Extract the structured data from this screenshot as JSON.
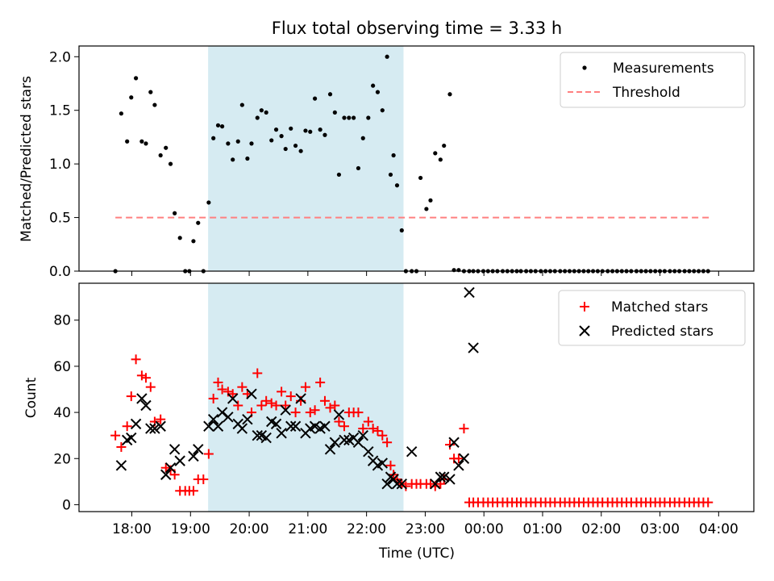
{
  "chart_data": [
    {
      "type": "scatter",
      "title": "Flux total observing time = 3.33 h",
      "xlabel": "",
      "ylabel": "Matched/Predicted stars",
      "xlim": [
        17.1,
        28.6
      ],
      "ylim": [
        0,
        2.1
      ],
      "yticks": [
        0.0,
        0.5,
        1.0,
        1.5,
        2.0
      ],
      "ytick_labels": [
        "0.0",
        "0.5",
        "1.0",
        "1.5",
        "2.0"
      ],
      "shaded_region": {
        "x0": 19.3,
        "x1": 22.63,
        "color": "#add8e6"
      },
      "threshold": {
        "name": "Threshold",
        "value": 0.5,
        "x0": 17.72,
        "x1": 27.88,
        "color": "#ff8080"
      },
      "legend": [
        "Measurements",
        "Threshold"
      ],
      "legend_position": "upper right",
      "series": [
        {
          "name": "Measurements",
          "marker": "dot",
          "color": "#000000",
          "x": [
            17.72,
            17.82,
            17.92,
            17.99,
            18.07,
            18.17,
            18.24,
            18.32,
            18.39,
            18.49,
            18.58,
            18.66,
            18.73,
            18.82,
            18.91,
            18.98,
            19.05,
            19.13,
            19.22,
            19.31,
            19.39,
            19.47,
            19.54,
            19.64,
            19.72,
            19.81,
            19.88,
            19.97,
            20.04,
            20.14,
            20.21,
            20.29,
            20.38,
            20.46,
            20.55,
            20.62,
            20.71,
            20.79,
            20.88,
            20.96,
            21.04,
            21.12,
            21.21,
            21.29,
            21.38,
            21.46,
            21.53,
            21.62,
            21.7,
            21.78,
            21.86,
            21.94,
            22.03,
            22.11,
            22.19,
            22.27,
            22.35,
            22.41,
            22.46,
            22.52,
            22.6,
            22.67,
            22.77,
            22.85,
            22.92,
            23.02,
            23.09,
            23.17,
            23.26,
            23.32,
            23.42,
            23.49,
            23.57,
            23.66,
            23.75,
            23.82,
            23.9,
            23.99,
            24.07,
            24.15,
            24.23,
            24.32,
            24.4,
            24.48,
            24.56,
            24.63,
            24.72,
            24.8,
            24.88,
            24.97,
            25.05,
            25.13,
            25.21,
            25.3,
            25.38,
            25.46,
            25.54,
            25.62,
            25.7,
            25.78,
            25.86,
            25.94,
            26.02,
            26.11,
            26.19,
            26.27,
            26.35,
            26.43,
            26.51,
            26.6,
            26.68,
            26.76,
            26.84,
            26.92,
            27.0,
            27.08,
            27.17,
            27.25,
            27.33,
            27.42,
            27.5,
            27.58,
            27.66,
            27.74,
            27.82
          ],
          "y": [
            0.0,
            1.47,
            1.21,
            1.62,
            1.8,
            1.21,
            1.19,
            1.67,
            1.55,
            1.08,
            1.15,
            1.0,
            0.54,
            0.31,
            0.0,
            0.0,
            0.28,
            0.45,
            0.0,
            0.64,
            1.24,
            1.36,
            1.35,
            1.19,
            1.04,
            1.21,
            1.55,
            1.05,
            1.19,
            1.43,
            1.5,
            1.48,
            1.22,
            1.32,
            1.26,
            1.14,
            1.33,
            1.17,
            1.12,
            1.31,
            1.3,
            1.61,
            1.32,
            1.27,
            1.65,
            1.48,
            0.9,
            1.43,
            1.43,
            1.43,
            0.96,
            1.24,
            1.43,
            1.73,
            1.67,
            1.5,
            2.0,
            0.9,
            1.08,
            0.8,
            0.38,
            0.0,
            0.0,
            0.0,
            0.87,
            0.58,
            0.66,
            1.1,
            1.04,
            1.17,
            1.65,
            0.01,
            0.01,
            0.0,
            0.0,
            0.0,
            0.0,
            0.0,
            0.0,
            0.0,
            0.0,
            0.0,
            0.0,
            0.0,
            0.0,
            0.0,
            0.0,
            0.0,
            0.0,
            0.0,
            0.0,
            0.0,
            0.0,
            0.0,
            0.0,
            0.0,
            0.0,
            0.0,
            0.0,
            0.0,
            0.0,
            0.0,
            0.0,
            0.0,
            0.0,
            0.0,
            0.0,
            0.0,
            0.0,
            0.0,
            0.0,
            0.0,
            0.0,
            0.0,
            0.0,
            0.0,
            0.0,
            0.0,
            0.0,
            0.0,
            0.0,
            0.0,
            0.0,
            0.0,
            0.0
          ]
        }
      ]
    },
    {
      "type": "scatter",
      "title": "",
      "xlabel": "Time (UTC)",
      "ylabel": "Count",
      "xlim": [
        17.1,
        28.6
      ],
      "ylim": [
        -3,
        96
      ],
      "yticks": [
        0,
        20,
        40,
        60,
        80
      ],
      "ytick_labels": [
        "0",
        "20",
        "40",
        "60",
        "80"
      ],
      "xticks": [
        18,
        19,
        20,
        21,
        22,
        23,
        24,
        25,
        26,
        27,
        28
      ],
      "xtick_labels": [
        "18:00",
        "19:00",
        "20:00",
        "21:00",
        "22:00",
        "23:00",
        "00:00",
        "01:00",
        "02:00",
        "03:00",
        "04:00"
      ],
      "shaded_region": {
        "x0": 19.3,
        "x1": 22.63,
        "color": "#add8e6"
      },
      "legend": [
        "Matched stars",
        "Predicted stars"
      ],
      "legend_position": "upper right",
      "series": [
        {
          "name": "Matched stars",
          "marker": "plus",
          "color": "#ff0000",
          "x": [
            17.72,
            17.82,
            17.92,
            17.99,
            18.07,
            18.17,
            18.24,
            18.32,
            18.39,
            18.49,
            18.58,
            18.66,
            18.73,
            18.82,
            18.91,
            18.98,
            19.05,
            19.13,
            19.22,
            19.31,
            19.39,
            19.47,
            19.54,
            19.64,
            19.72,
            19.81,
            19.88,
            19.97,
            20.04,
            20.14,
            20.21,
            20.29,
            20.38,
            20.46,
            20.55,
            20.62,
            20.71,
            20.79,
            20.88,
            20.96,
            21.04,
            21.12,
            21.21,
            21.29,
            21.38,
            21.46,
            21.53,
            21.62,
            21.7,
            21.78,
            21.86,
            21.94,
            22.03,
            22.11,
            22.19,
            22.27,
            22.35,
            22.41,
            22.46,
            22.52,
            22.6,
            22.67,
            22.77,
            22.85,
            22.92,
            23.02,
            23.09,
            23.17,
            23.26,
            23.32,
            23.42,
            23.49,
            23.57,
            23.66,
            23.75,
            23.82,
            23.9,
            23.99,
            24.07,
            24.15,
            24.23,
            24.32,
            24.4,
            24.48,
            24.56,
            24.63,
            24.72,
            24.8,
            24.88,
            24.97,
            25.05,
            25.13,
            25.21,
            25.3,
            25.38,
            25.46,
            25.54,
            25.62,
            25.7,
            25.78,
            25.86,
            25.94,
            26.02,
            26.11,
            26.19,
            26.27,
            26.35,
            26.43,
            26.51,
            26.6,
            26.68,
            26.76,
            26.84,
            26.92,
            27.0,
            27.08,
            27.17,
            27.25,
            27.33,
            27.42,
            27.5,
            27.58,
            27.66,
            27.74,
            27.82
          ],
          "y": [
            30,
            25,
            34,
            47,
            63,
            56,
            55,
            51,
            36,
            37,
            16,
            15,
            13,
            6,
            6,
            6,
            6,
            11,
            11,
            22,
            46,
            53,
            50,
            49,
            48,
            43,
            51,
            48,
            40,
            57,
            43,
            45,
            44,
            43,
            49,
            43,
            47,
            40,
            45,
            51,
            40,
            41,
            53,
            45,
            42,
            43,
            36,
            34,
            40,
            40,
            40,
            33,
            36,
            33,
            32,
            30,
            27,
            17,
            13,
            11,
            9,
            8,
            9,
            9,
            9,
            9,
            9,
            8,
            9,
            11,
            26,
            20,
            20,
            33,
            1,
            1,
            1,
            1,
            1,
            1,
            1,
            1,
            1,
            1,
            1,
            1,
            1,
            1,
            1,
            1,
            1,
            1,
            1,
            1,
            1,
            1,
            1,
            1,
            1,
            1,
            1,
            1,
            1,
            1,
            1,
            1,
            1,
            1,
            1,
            1,
            1,
            1,
            1,
            1,
            1,
            1,
            1,
            1,
            1,
            1,
            1,
            1,
            1,
            1,
            1
          ]
        },
        {
          "name": "Predicted stars",
          "marker": "x",
          "color": "#000000",
          "x": [
            17.82,
            17.92,
            17.99,
            18.07,
            18.17,
            18.24,
            18.32,
            18.39,
            18.49,
            18.58,
            18.66,
            18.73,
            18.82,
            19.05,
            19.13,
            19.31,
            19.39,
            19.47,
            19.54,
            19.64,
            19.72,
            19.81,
            19.88,
            19.97,
            20.04,
            20.14,
            20.21,
            20.29,
            20.38,
            20.46,
            20.55,
            20.62,
            20.71,
            20.79,
            20.88,
            20.96,
            21.04,
            21.12,
            21.21,
            21.29,
            21.38,
            21.46,
            21.53,
            21.62,
            21.7,
            21.78,
            21.86,
            21.94,
            22.03,
            22.11,
            22.19,
            22.27,
            22.35,
            22.41,
            22.46,
            22.52,
            22.6,
            22.77,
            23.17,
            23.26,
            23.32,
            23.42,
            23.49,
            23.57,
            23.66,
            23.75,
            23.82
          ],
          "y": [
            17,
            28,
            29,
            35,
            46,
            43,
            33,
            33,
            34,
            13,
            16,
            24,
            19,
            21,
            24,
            34,
            37,
            34,
            40,
            38,
            46,
            35,
            33,
            37,
            48,
            30,
            30,
            29,
            36,
            35,
            31,
            41,
            34,
            34,
            46,
            31,
            33,
            34,
            33,
            34,
            24,
            27,
            39,
            28,
            28,
            29,
            27,
            30,
            23,
            19,
            17,
            18,
            9,
            12,
            11,
            9,
            9,
            23,
            9,
            12,
            12,
            11,
            27,
            17,
            20,
            92,
            68
          ]
        }
      ]
    }
  ]
}
